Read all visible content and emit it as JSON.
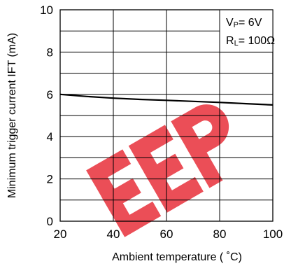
{
  "chart_data": {
    "type": "line",
    "title": "",
    "xlabel": "Ambient temperature ( ˚C)",
    "ylabel": "Minimum trigger current IFT (mA)",
    "xlim": [
      20,
      100
    ],
    "ylim": [
      0,
      10
    ],
    "x_ticks": [
      20,
      40,
      60,
      80,
      100
    ],
    "y_ticks": [
      0,
      2,
      4,
      6,
      8,
      10
    ],
    "x_tick_labels": [
      "20",
      "40",
      "60",
      "80",
      "100"
    ],
    "y_tick_labels": [
      "0",
      "2",
      "4",
      "6",
      "8",
      "10"
    ],
    "grid": true,
    "grid_y_step": 1,
    "grid_x_step": 20,
    "series": [
      {
        "name": "",
        "x": [
          20,
          30,
          40,
          50,
          60,
          70,
          80,
          90,
          100
        ],
        "y": [
          6.0,
          5.9,
          5.82,
          5.76,
          5.72,
          5.67,
          5.62,
          5.56,
          5.5
        ],
        "color": "#000000"
      }
    ],
    "annotation": {
      "line1_main": "V",
      "line1_sub": "P",
      "line1_rest": "= 6V",
      "line2_main": "R",
      "line2_sub": "L",
      "line2_rest": "= 100Ω",
      "placement": "top-right"
    },
    "watermark": {
      "text": "EEP",
      "color": "#e8303a"
    }
  }
}
